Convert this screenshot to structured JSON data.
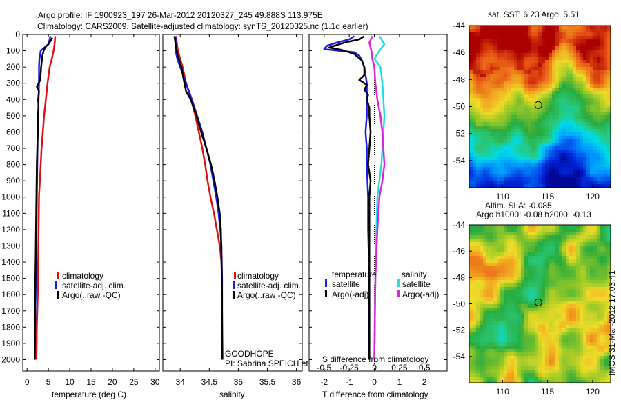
{
  "header": {
    "title_line1": "Argo profile: IF 1900923_197 26-Mar-2012 20120327_245 49.888S 113.975E",
    "title_line2": "Climatology: CARS2009. Satellite-adjusted climatology: synTS_20120325.nc (1.1d earlier)"
  },
  "watermark": "IMOS 31-Mar-2012 17:03:41",
  "footer_note": {
    "line1": "GOODHOPE",
    "line2": "PI: Sabrina SPEICH et Michel ARHAN"
  },
  "colors": {
    "climatology": "#e01010",
    "satellite": "#1a1ae6",
    "argo": "#000000",
    "sat_salinity": "#22dde0",
    "argo_adj_salinity": "#e020e0"
  },
  "chart_data": [
    {
      "id": "temperature",
      "type": "line",
      "xlabel": "temperature (deg C)",
      "ylabel": "",
      "xlim": [
        -1,
        31
      ],
      "ylim": [
        2070,
        0
      ],
      "xticks": [
        0,
        5,
        10,
        15,
        20,
        25,
        30
      ],
      "xticklabels": [
        "0",
        "5",
        "10",
        "15",
        "20",
        "25",
        "30"
      ],
      "yticks": [
        0,
        100,
        200,
        300,
        400,
        500,
        600,
        700,
        800,
        900,
        1000,
        1100,
        1200,
        1300,
        1400,
        1500,
        1600,
        1700,
        1800,
        1900,
        2000
      ],
      "yticklabels": [
        "0",
        "100",
        "200",
        "300",
        "400",
        "500",
        "600",
        "700",
        "800",
        "900",
        "1000",
        "1100",
        "1200",
        "1300",
        "1400",
        "1500",
        "1600",
        "1700",
        "1800",
        "1900",
        "2000"
      ],
      "legend": [
        "climatology",
        "satellite-adj. clim.",
        "Argo(..raw -QC)"
      ],
      "series": [
        {
          "name": "climatology",
          "color": "#e01010",
          "points": [
            [
              6.6,
              10
            ],
            [
              6.5,
              50
            ],
            [
              6.2,
              100
            ],
            [
              5.8,
              150
            ],
            [
              5.3,
              200
            ],
            [
              4.8,
              300
            ],
            [
              4.4,
              400
            ],
            [
              4.0,
              500
            ],
            [
              3.7,
              600
            ],
            [
              3.4,
              700
            ],
            [
              3.2,
              800
            ],
            [
              3.0,
              900
            ],
            [
              2.8,
              1000
            ],
            [
              2.7,
              1200
            ],
            [
              2.6,
              1400
            ],
            [
              2.5,
              1600
            ],
            [
              2.3,
              1800
            ],
            [
              2.2,
              2000
            ]
          ]
        },
        {
          "name": "satellite-adj. clim.",
          "color": "#1a1ae6",
          "points": [
            [
              5.5,
              10
            ],
            [
              5.0,
              60
            ],
            [
              3.2,
              100
            ],
            [
              2.9,
              150
            ],
            [
              2.8,
              200
            ],
            [
              2.8,
              300
            ],
            [
              2.7,
              400
            ],
            [
              2.6,
              500
            ],
            [
              2.5,
              600
            ],
            [
              2.4,
              800
            ],
            [
              2.3,
              1000
            ],
            [
              2.2,
              1200
            ],
            [
              2.1,
              1400
            ],
            [
              2.0,
              1600
            ],
            [
              1.9,
              1800
            ],
            [
              1.8,
              2000
            ]
          ]
        },
        {
          "name": "Argo(..raw -QC)",
          "color": "#000000",
          "points": [
            [
              5.9,
              20
            ],
            [
              5.5,
              40
            ],
            [
              5.0,
              60
            ],
            [
              4.2,
              80
            ],
            [
              3.9,
              100
            ],
            [
              3.6,
              130
            ],
            [
              3.3,
              200
            ],
            [
              3.1,
              280
            ],
            [
              2.3,
              320
            ],
            [
              2.8,
              350
            ],
            [
              2.6,
              400
            ],
            [
              2.7,
              450
            ],
            [
              2.5,
              520
            ],
            [
              2.5,
              600
            ],
            [
              2.3,
              800
            ],
            [
              2.2,
              1000
            ],
            [
              2.1,
              1200
            ],
            [
              2.0,
              1400
            ],
            [
              1.9,
              1600
            ],
            [
              1.9,
              1800
            ],
            [
              1.8,
              2000
            ]
          ]
        }
      ]
    },
    {
      "id": "salinity",
      "type": "line",
      "xlabel": "salinity",
      "ylabel": "",
      "xlim": [
        33.7,
        36.1
      ],
      "ylim": [
        2070,
        0
      ],
      "xticks": [
        34,
        34.5,
        35,
        35.5,
        36
      ],
      "xticklabels": [
        "34",
        "34.5",
        "35",
        "35.5",
        "36"
      ],
      "legend": [
        "climatology",
        "satellite-adj. clim.",
        "Argo(..raw -QC)"
      ],
      "series": [
        {
          "name": "climatology",
          "color": "#e01010",
          "points": [
            [
              33.93,
              10
            ],
            [
              33.94,
              50
            ],
            [
              33.96,
              100
            ],
            [
              34.0,
              150
            ],
            [
              34.04,
              200
            ],
            [
              34.1,
              300
            ],
            [
              34.19,
              400
            ],
            [
              34.26,
              500
            ],
            [
              34.32,
              600
            ],
            [
              34.38,
              700
            ],
            [
              34.43,
              800
            ],
            [
              34.47,
              900
            ],
            [
              34.52,
              1000
            ],
            [
              34.58,
              1100
            ],
            [
              34.63,
              1200
            ],
            [
              34.68,
              1300
            ],
            [
              34.71,
              1400
            ],
            [
              34.72,
              1500
            ],
            [
              34.72,
              1700
            ],
            [
              34.73,
              2000
            ]
          ]
        },
        {
          "name": "satellite-adj. clim.",
          "color": "#1a1ae6",
          "points": [
            [
              33.92,
              10
            ],
            [
              33.92,
              100
            ],
            [
              33.95,
              150
            ],
            [
              34.0,
              200
            ],
            [
              34.1,
              300
            ],
            [
              34.2,
              400
            ],
            [
              34.29,
              500
            ],
            [
              34.38,
              600
            ],
            [
              34.45,
              700
            ],
            [
              34.52,
              800
            ],
            [
              34.57,
              900
            ],
            [
              34.62,
              1000
            ],
            [
              34.66,
              1100
            ],
            [
              34.69,
              1200
            ],
            [
              34.71,
              1300
            ],
            [
              34.72,
              1500
            ],
            [
              34.72,
              1800
            ],
            [
              34.72,
              2000
            ]
          ]
        },
        {
          "name": "Argo(..raw -QC)",
          "color": "#000000",
          "points": [
            [
              33.9,
              10
            ],
            [
              33.92,
              60
            ],
            [
              33.95,
              120
            ],
            [
              34.02,
              200
            ],
            [
              34.06,
              280
            ],
            [
              34.1,
              350
            ],
            [
              34.18,
              400
            ],
            [
              34.28,
              500
            ],
            [
              34.36,
              600
            ],
            [
              34.45,
              700
            ],
            [
              34.53,
              800
            ],
            [
              34.59,
              900
            ],
            [
              34.64,
              1000
            ],
            [
              34.68,
              1100
            ],
            [
              34.7,
              1200
            ],
            [
              34.71,
              1400
            ],
            [
              34.72,
              1600
            ],
            [
              34.72,
              2000
            ]
          ]
        }
      ]
    },
    {
      "id": "difference",
      "type": "line",
      "xlabel": "T difference from climatology",
      "xlabel_top": "S difference from climatology",
      "ylabel": "",
      "xlim": [
        -2.6,
        2.9
      ],
      "ylim": [
        2070,
        0
      ],
      "xticks": [
        -2,
        -1,
        0,
        1,
        2
      ],
      "xticklabels": [
        "-2",
        "-1",
        "0",
        "1",
        "2"
      ],
      "sticks_labels": [
        "-0.5",
        "-0.25",
        "0",
        "0.25",
        "0.5"
      ],
      "legend_headers": [
        "temperature",
        "salinity"
      ],
      "legend_temperature": [
        "satellite",
        "Argo(-adj)"
      ],
      "legend_salinity": [
        "satellite",
        "Argo(-adj)"
      ],
      "series": [
        {
          "name": "satellite",
          "color": "#1a1ae6",
          "points": [
            [
              -0.8,
              10
            ],
            [
              -1.0,
              30
            ],
            [
              -1.5,
              50
            ],
            [
              -1.9,
              70
            ],
            [
              -2.0,
              90
            ],
            [
              -1.4,
              100
            ],
            [
              -0.8,
              110
            ],
            [
              -0.6,
              130
            ],
            [
              -0.5,
              160
            ],
            [
              -0.4,
              200
            ],
            [
              -0.3,
              300
            ],
            [
              -0.3,
              400
            ],
            [
              -0.3,
              500
            ],
            [
              -0.35,
              600
            ],
            [
              -0.3,
              700
            ],
            [
              -0.3,
              800
            ],
            [
              -0.25,
              1000
            ],
            [
              -0.25,
              1200
            ],
            [
              -0.2,
              1500
            ],
            [
              -0.2,
              2000
            ]
          ]
        },
        {
          "name": "Argo(-adj)",
          "color": "#000000",
          "points": [
            [
              -0.4,
              10
            ],
            [
              -0.6,
              30
            ],
            [
              -1.2,
              50
            ],
            [
              -1.6,
              70
            ],
            [
              -1.8,
              80
            ],
            [
              -1.3,
              95
            ],
            [
              -0.8,
              120
            ],
            [
              -0.5,
              160
            ],
            [
              -0.4,
              200
            ],
            [
              -0.4,
              250
            ],
            [
              -0.6,
              280
            ],
            [
              -0.3,
              310
            ],
            [
              -0.4,
              340
            ],
            [
              -0.25,
              370
            ],
            [
              -0.3,
              400
            ],
            [
              -0.2,
              450
            ],
            [
              -0.2,
              500
            ],
            [
              -0.15,
              600
            ],
            [
              -0.2,
              700
            ],
            [
              -0.25,
              800
            ],
            [
              -0.15,
              900
            ],
            [
              -0.2,
              1000
            ],
            [
              -0.2,
              1200
            ],
            [
              -0.2,
              1500
            ],
            [
              -0.2,
              1800
            ],
            [
              -0.2,
              2000
            ]
          ]
        },
        {
          "name": "satellite",
          "color": "#22dde0",
          "points": [
            [
              0.05,
              10
            ],
            [
              0.1,
              60
            ],
            [
              0.05,
              100
            ],
            [
              0.0,
              150
            ],
            [
              0.06,
              200
            ],
            [
              0.08,
              300
            ],
            [
              0.09,
              400
            ],
            [
              0.1,
              500
            ],
            [
              0.09,
              600
            ],
            [
              0.08,
              700
            ],
            [
              0.07,
              800
            ],
            [
              0.05,
              900
            ],
            [
              0.03,
              1000
            ],
            [
              0.02,
              1200
            ],
            [
              0.01,
              1500
            ],
            [
              0.0,
              2000
            ]
          ]
        },
        {
          "name": "Argo(-adj)",
          "color": "#e020e0",
          "points": [
            [
              -0.02,
              10
            ],
            [
              -0.05,
              50
            ],
            [
              -0.03,
              100
            ],
            [
              -0.02,
              150
            ],
            [
              0.0,
              200
            ],
            [
              0.01,
              300
            ],
            [
              0.03,
              400
            ],
            [
              0.06,
              500
            ],
            [
              0.08,
              600
            ],
            [
              0.09,
              700
            ],
            [
              0.1,
              800
            ],
            [
              0.08,
              900
            ],
            [
              0.05,
              1000
            ],
            [
              0.03,
              1200
            ],
            [
              0.01,
              1500
            ],
            [
              0.0,
              2000
            ]
          ]
        }
      ]
    },
    {
      "id": "sst_map",
      "type": "heatmap",
      "title": "sat. SST: 6.23 Argo: 5.51",
      "xticks": [
        110,
        115,
        120
      ],
      "yticks": [
        -44,
        -46,
        -48,
        -50,
        -52,
        -54
      ],
      "xlim": [
        106.3,
        122
      ],
      "ylim": [
        -56,
        -44
      ],
      "marker": [
        113.975,
        -49.888
      ]
    },
    {
      "id": "sla_map",
      "type": "heatmap",
      "title_line1": "Altim. SLA: -0.085",
      "title_line2": "Argo h1000: -0.08 h2000: -0.13",
      "xticks": [
        110,
        115,
        120
      ],
      "yticks": [
        -44,
        -46,
        -48,
        -50,
        -52,
        -54
      ],
      "xlim": [
        106.3,
        122
      ],
      "ylim": [
        -56,
        -44
      ],
      "marker": [
        113.975,
        -49.888
      ]
    }
  ]
}
